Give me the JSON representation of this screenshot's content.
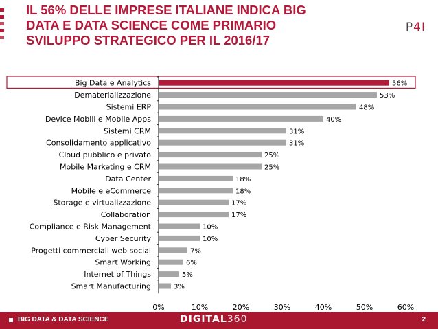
{
  "header": {
    "title": "IL 56% DELLE IMPRESE ITALIANE INDICA BIG\nDATA E DATA SCIENCE COME PRIMARIO\nSVILUPPO STRATEGICO PER IL 2016/17",
    "logo_left": "P",
    "logo_right": "4I",
    "accent_color": "#b5193a"
  },
  "chart_data": {
    "type": "bar",
    "orientation": "horizontal",
    "categories": [
      "Big Data e Analytics",
      "Dematerializzazione",
      "Sistemi ERP",
      "Device Mobili e Mobile Apps",
      "Sistemi CRM",
      "Consolidamento applicativo",
      "Cloud pubblico e privato",
      "Mobile Marketing e CRM",
      "Data Center",
      "Mobile e eCommerce",
      "Storage e virtualizzazione",
      "Collaboration",
      "Compliance e Risk Management",
      "Cyber Security",
      "Progetti commerciali web social",
      "Smart Working",
      "Internet of Things",
      "Smart Manufacturing"
    ],
    "values": [
      56,
      53,
      48,
      40,
      31,
      31,
      25,
      25,
      18,
      18,
      17,
      17,
      10,
      10,
      7,
      6,
      5,
      3
    ],
    "data_labels": [
      "56%",
      "53%",
      "48%",
      "40%",
      "31%",
      "31%",
      "25%",
      "25%",
      "18%",
      "18%",
      "17%",
      "17%",
      "10%",
      "10%",
      "7%",
      "6%",
      "5%",
      "3%"
    ],
    "xticks": [
      "0%",
      "10%",
      "20%",
      "30%",
      "40%",
      "50%",
      "60%"
    ],
    "xlim": [
      0,
      60
    ],
    "highlight_index": 0,
    "highlight_color": "#b5193a",
    "bar_color": "#a6a6a6",
    "grid": false,
    "title": "",
    "xlabel": "",
    "ylabel": ""
  },
  "footer": {
    "section": "BIG DATA & DATA SCIENCE",
    "brand_main": "DIGITAL",
    "brand_sub": "360",
    "page_number": "2"
  }
}
